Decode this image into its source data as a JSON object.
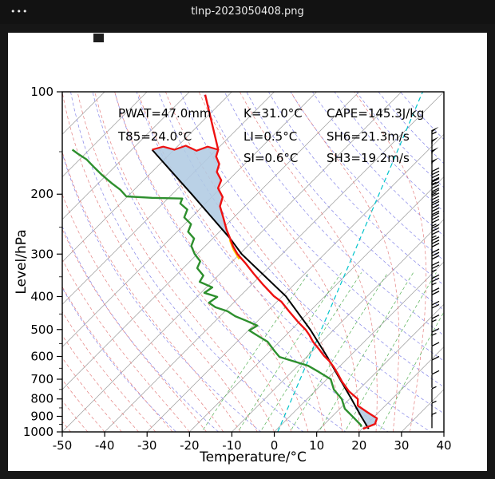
{
  "window": {
    "title": "tlnp-2023050408.png",
    "menu_dots": "•••"
  },
  "annotations": {
    "pwat": "PWAT=47.0mm",
    "t85": "T85=24.0°C",
    "k": "K=31.0°C",
    "li": "LI=0.5°C",
    "si": "SI=0.6°C",
    "cape": "CAPE=145.3J/kg",
    "sh6": "SH6=21.3m/s",
    "sh3": "SH3=19.2m/s"
  },
  "axes": {
    "x_label": "Temperature/°C",
    "y_label": "Level/hPa",
    "x_ticks": [
      -50,
      -40,
      -30,
      -20,
      -10,
      0,
      10,
      20,
      30,
      40
    ],
    "y_ticks": [
      100,
      200,
      300,
      400,
      500,
      600,
      700,
      800,
      900,
      1000
    ],
    "x_range": [
      -50,
      40
    ],
    "p_range": [
      100,
      1000
    ],
    "skew_degC_per_decade": 80
  },
  "colors": {
    "temperature": "#ee1111",
    "temperature_cap": "#ee1111",
    "dewpoint": "#2d8f2d",
    "parcel": "#000000",
    "yellow_segment": "#ffcc00",
    "area_fill": "#b0cbe2",
    "isotherm": "#9a9a9a",
    "dry_adiabat": "#8585e8",
    "moist_adiabat": "#e48080",
    "mixing_ratio": "#55b055",
    "special_line": "#00c4cc",
    "axis": "#000000",
    "barb": "#000000"
  },
  "chart_data": {
    "type": "skewt_log_p_sounding",
    "title": "tlnp-2023050408",
    "pressure_unit": "hPa",
    "temperature_unit": "degC",
    "indices": {
      "pwat_mm": 47.0,
      "t85_C": 24.0,
      "k_C": 31.0,
      "li_C": 0.5,
      "si_C": 0.6,
      "cape_J_per_kg": 145.3,
      "sh6_m_per_s": 21.3,
      "sh3_m_per_s": 19.2
    },
    "series": {
      "temperature": [
        [
          979,
          20.2
        ],
        [
          948,
          21.9
        ],
        [
          912,
          21.0
        ],
        [
          874,
          17.2
        ],
        [
          837,
          13.5
        ],
        [
          801,
          12.0
        ],
        [
          759,
          8.0
        ],
        [
          711,
          4.1
        ],
        [
          681,
          1.8
        ],
        [
          645,
          -1.2
        ],
        [
          618,
          -3.8
        ],
        [
          598,
          -6.1
        ],
        [
          573,
          -8.7
        ],
        [
          543,
          -12.1
        ],
        [
          520,
          -14.4
        ],
        [
          501,
          -16.6
        ],
        [
          474,
          -20.4
        ],
        [
          442,
          -24.9
        ],
        [
          414,
          -29.0
        ],
        [
          399,
          -32.0
        ],
        [
          370,
          -37.1
        ],
        [
          343,
          -42.0
        ],
        [
          320,
          -46.3
        ],
        [
          300,
          -50.5
        ],
        [
          284,
          -53.5
        ],
        [
          270,
          -55.9
        ],
        [
          255,
          -58.7
        ],
        [
          234,
          -62.5
        ],
        [
          217,
          -65.9
        ],
        [
          204,
          -67.4
        ],
        [
          192,
          -70.6
        ],
        [
          182,
          -71.7
        ],
        [
          172,
          -74.7
        ],
        [
          163,
          -76.0
        ],
        [
          155,
          -78.5
        ],
        [
          148,
          -79.6
        ],
        [
          102,
          -95.6
        ]
      ],
      "temperature_cap": [
        [
          148,
          -79.6
        ],
        [
          145,
          -82.8
        ],
        [
          149,
          -84.5
        ],
        [
          144,
          -88.2
        ],
        [
          148,
          -89.9
        ],
        [
          145,
          -93.3
        ],
        [
          148,
          -95.2
        ]
      ],
      "dewpoint": [
        [
          966,
          19.3
        ],
        [
          956,
          18.9
        ],
        [
          907,
          15.3
        ],
        [
          855,
          11.2
        ],
        [
          801,
          8.2
        ],
        [
          751,
          4.1
        ],
        [
          700,
          0.9
        ],
        [
          667,
          -3.5
        ],
        [
          639,
          -7.6
        ],
        [
          618,
          -12.5
        ],
        [
          602,
          -16.4
        ],
        [
          579,
          -18.9
        ],
        [
          543,
          -22.8
        ],
        [
          520,
          -26.8
        ],
        [
          503,
          -29.8
        ],
        [
          487,
          -29.0
        ],
        [
          471,
          -32.8
        ],
        [
          457,
          -36.4
        ],
        [
          442,
          -39.4
        ],
        [
          430,
          -43.2
        ],
        [
          417,
          -45.8
        ],
        [
          401,
          -45.2
        ],
        [
          390,
          -49.2
        ],
        [
          376,
          -48.6
        ],
        [
          362,
          -52.9
        ],
        [
          347,
          -53.5
        ],
        [
          330,
          -56.7
        ],
        [
          315,
          -57.6
        ],
        [
          300,
          -60.6
        ],
        [
          284,
          -63.3
        ],
        [
          270,
          -64.4
        ],
        [
          258,
          -67.4
        ],
        [
          245,
          -68.5
        ],
        [
          234,
          -71.7
        ],
        [
          222,
          -72.8
        ],
        [
          213,
          -75.9
        ],
        [
          206,
          -76.6
        ],
        [
          205,
          -83.9
        ],
        [
          203,
          -90.3
        ],
        [
          194,
          -93.3
        ],
        [
          186,
          -96.7
        ],
        [
          176,
          -100.9
        ],
        [
          167,
          -104.6
        ],
        [
          158,
          -108.4
        ],
        [
          152,
          -111.8
        ],
        [
          148,
          -114.0
        ]
      ],
      "parcel": [
        [
          979,
          21.5
        ],
        [
          898,
          16.7
        ],
        [
          801,
          10.5
        ],
        [
          700,
          3.1
        ],
        [
          598,
          -5.5
        ],
        [
          501,
          -15.5
        ],
        [
          399,
          -29.2
        ],
        [
          300,
          -49.5
        ],
        [
          270,
          -55.9
        ],
        [
          200,
          -75.4
        ],
        [
          148,
          -95.2
        ]
      ],
      "yellow_segment": [
        [
          310,
          -48.9
        ],
        [
          290,
          -52.6
        ],
        [
          272,
          -55.7
        ]
      ]
    },
    "cape_polygons": [
      {
        "name": "upper-shaded-area",
        "points": [
          [
            148,
            -95.2
          ],
          [
            200,
            -75.4
          ],
          [
            270,
            -55.9
          ],
          [
            255,
            -58.7
          ],
          [
            234,
            -62.5
          ],
          [
            217,
            -65.9
          ],
          [
            204,
            -67.4
          ],
          [
            192,
            -70.6
          ],
          [
            182,
            -71.7
          ],
          [
            172,
            -74.7
          ],
          [
            163,
            -76.0
          ],
          [
            155,
            -78.5
          ],
          [
            148,
            -79.6
          ],
          [
            145,
            -82.8
          ],
          [
            149,
            -84.5
          ],
          [
            144,
            -88.2
          ],
          [
            148,
            -89.9
          ],
          [
            145,
            -93.3
          ]
        ]
      },
      {
        "name": "lower-shaded-area",
        "points": [
          [
            845,
            13.3
          ],
          [
            898,
            16.7
          ],
          [
            940,
            19.2
          ],
          [
            967,
            20.8
          ],
          [
            948,
            21.9
          ],
          [
            912,
            21.0
          ],
          [
            874,
            17.2
          ],
          [
            845,
            14.3
          ]
        ]
      }
    ],
    "special_line": [
      [
        1000,
        0.8
      ],
      [
        100,
        -45.0
      ]
    ],
    "mixing_ratio_lines_g_per_kg": [
      1,
      2,
      3,
      5,
      8,
      12,
      20
    ],
    "wind_barbs": [
      {
        "p": 142,
        "kt": 55
      },
      {
        "p": 152,
        "kt": 50
      },
      {
        "p": 163,
        "kt": 50
      },
      {
        "p": 175,
        "kt": 50
      },
      {
        "p": 188,
        "kt": 45
      },
      {
        "p": 202,
        "kt": 45
      },
      {
        "p": 218,
        "kt": 40
      },
      {
        "p": 236,
        "kt": 40
      },
      {
        "p": 255,
        "kt": 35
      },
      {
        "p": 276,
        "kt": 35
      },
      {
        "p": 300,
        "kt": 30
      },
      {
        "p": 326,
        "kt": 30
      },
      {
        "p": 355,
        "kt": 25
      },
      {
        "p": 388,
        "kt": 25
      },
      {
        "p": 424,
        "kt": 20
      },
      {
        "p": 464,
        "kt": 20
      },
      {
        "p": 509,
        "kt": 15
      },
      {
        "p": 558,
        "kt": 15
      },
      {
        "p": 613,
        "kt": 10
      },
      {
        "p": 674,
        "kt": 10
      },
      {
        "p": 742,
        "kt": 10
      },
      {
        "p": 818,
        "kt": 5
      },
      {
        "p": 902,
        "kt": 5
      },
      {
        "p": 975,
        "kt": 5
      }
    ]
  }
}
